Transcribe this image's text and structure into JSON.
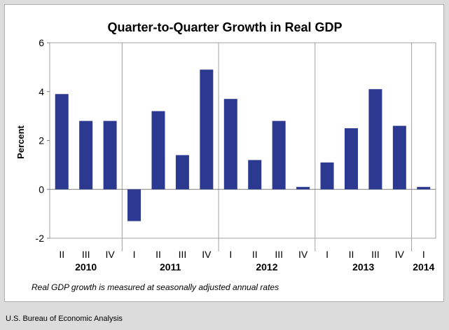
{
  "chart_data": {
    "type": "bar",
    "title": "Quarter-to-Quarter Growth in Real GDP",
    "ylabel": "Percent",
    "xlabel": "",
    "ylim": [
      -2,
      6
    ],
    "yticks": [
      "6",
      "4",
      "2",
      "0",
      "-2"
    ],
    "categories": [
      "II",
      "III",
      "IV",
      "I",
      "II",
      "III",
      "IV",
      "I",
      "II",
      "III",
      "IV",
      "I",
      "II",
      "III",
      "IV",
      "I"
    ],
    "years": [
      "2010",
      "2011",
      "2012",
      "2013",
      "2014"
    ],
    "values": [
      3.9,
      2.8,
      2.8,
      -1.3,
      3.2,
      1.4,
      4.9,
      3.7,
      1.2,
      2.8,
      0.1,
      1.1,
      2.5,
      4.1,
      2.6,
      0.1
    ],
    "bar_color": "#2b3990",
    "grid": false,
    "note": "Real GDP growth is measured at seasonally adjusted annual rates"
  },
  "source": "U.S. Bureau of Economic Analysis"
}
